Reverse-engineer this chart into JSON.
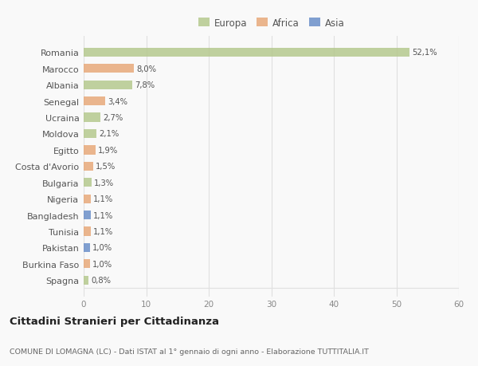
{
  "countries": [
    "Romania",
    "Marocco",
    "Albania",
    "Senegal",
    "Ucraina",
    "Moldova",
    "Egitto",
    "Costa d'Avorio",
    "Bulgaria",
    "Nigeria",
    "Bangladesh",
    "Tunisia",
    "Pakistan",
    "Burkina Faso",
    "Spagna"
  ],
  "values": [
    52.1,
    8.0,
    7.8,
    3.4,
    2.7,
    2.1,
    1.9,
    1.5,
    1.3,
    1.1,
    1.1,
    1.1,
    1.0,
    1.0,
    0.8
  ],
  "labels": [
    "52,1%",
    "8,0%",
    "7,8%",
    "3,4%",
    "2,7%",
    "2,1%",
    "1,9%",
    "1,5%",
    "1,3%",
    "1,1%",
    "1,1%",
    "1,1%",
    "1,0%",
    "1,0%",
    "0,8%"
  ],
  "continents": [
    "Europa",
    "Africa",
    "Europa",
    "Africa",
    "Europa",
    "Europa",
    "Africa",
    "Africa",
    "Europa",
    "Africa",
    "Asia",
    "Africa",
    "Asia",
    "Africa",
    "Europa"
  ],
  "continent_colors": {
    "Europa": "#b5c98e",
    "Africa": "#e8a97a",
    "Asia": "#6b8fc9"
  },
  "legend_items": [
    "Europa",
    "Africa",
    "Asia"
  ],
  "legend_colors": [
    "#b5c98e",
    "#e8a97a",
    "#6b8fc9"
  ],
  "title": "Cittadini Stranieri per Cittadinanza",
  "subtitle": "COMUNE DI LOMAGNA (LC) - Dati ISTAT al 1° gennaio di ogni anno - Elaborazione TUTTITALIA.IT",
  "xlim": [
    0,
    60
  ],
  "xticks": [
    0,
    10,
    20,
    30,
    40,
    50,
    60
  ],
  "background_color": "#f9f9f9",
  "grid_color": "#e0e0e0",
  "bar_alpha": 0.85,
  "bar_height": 0.55
}
